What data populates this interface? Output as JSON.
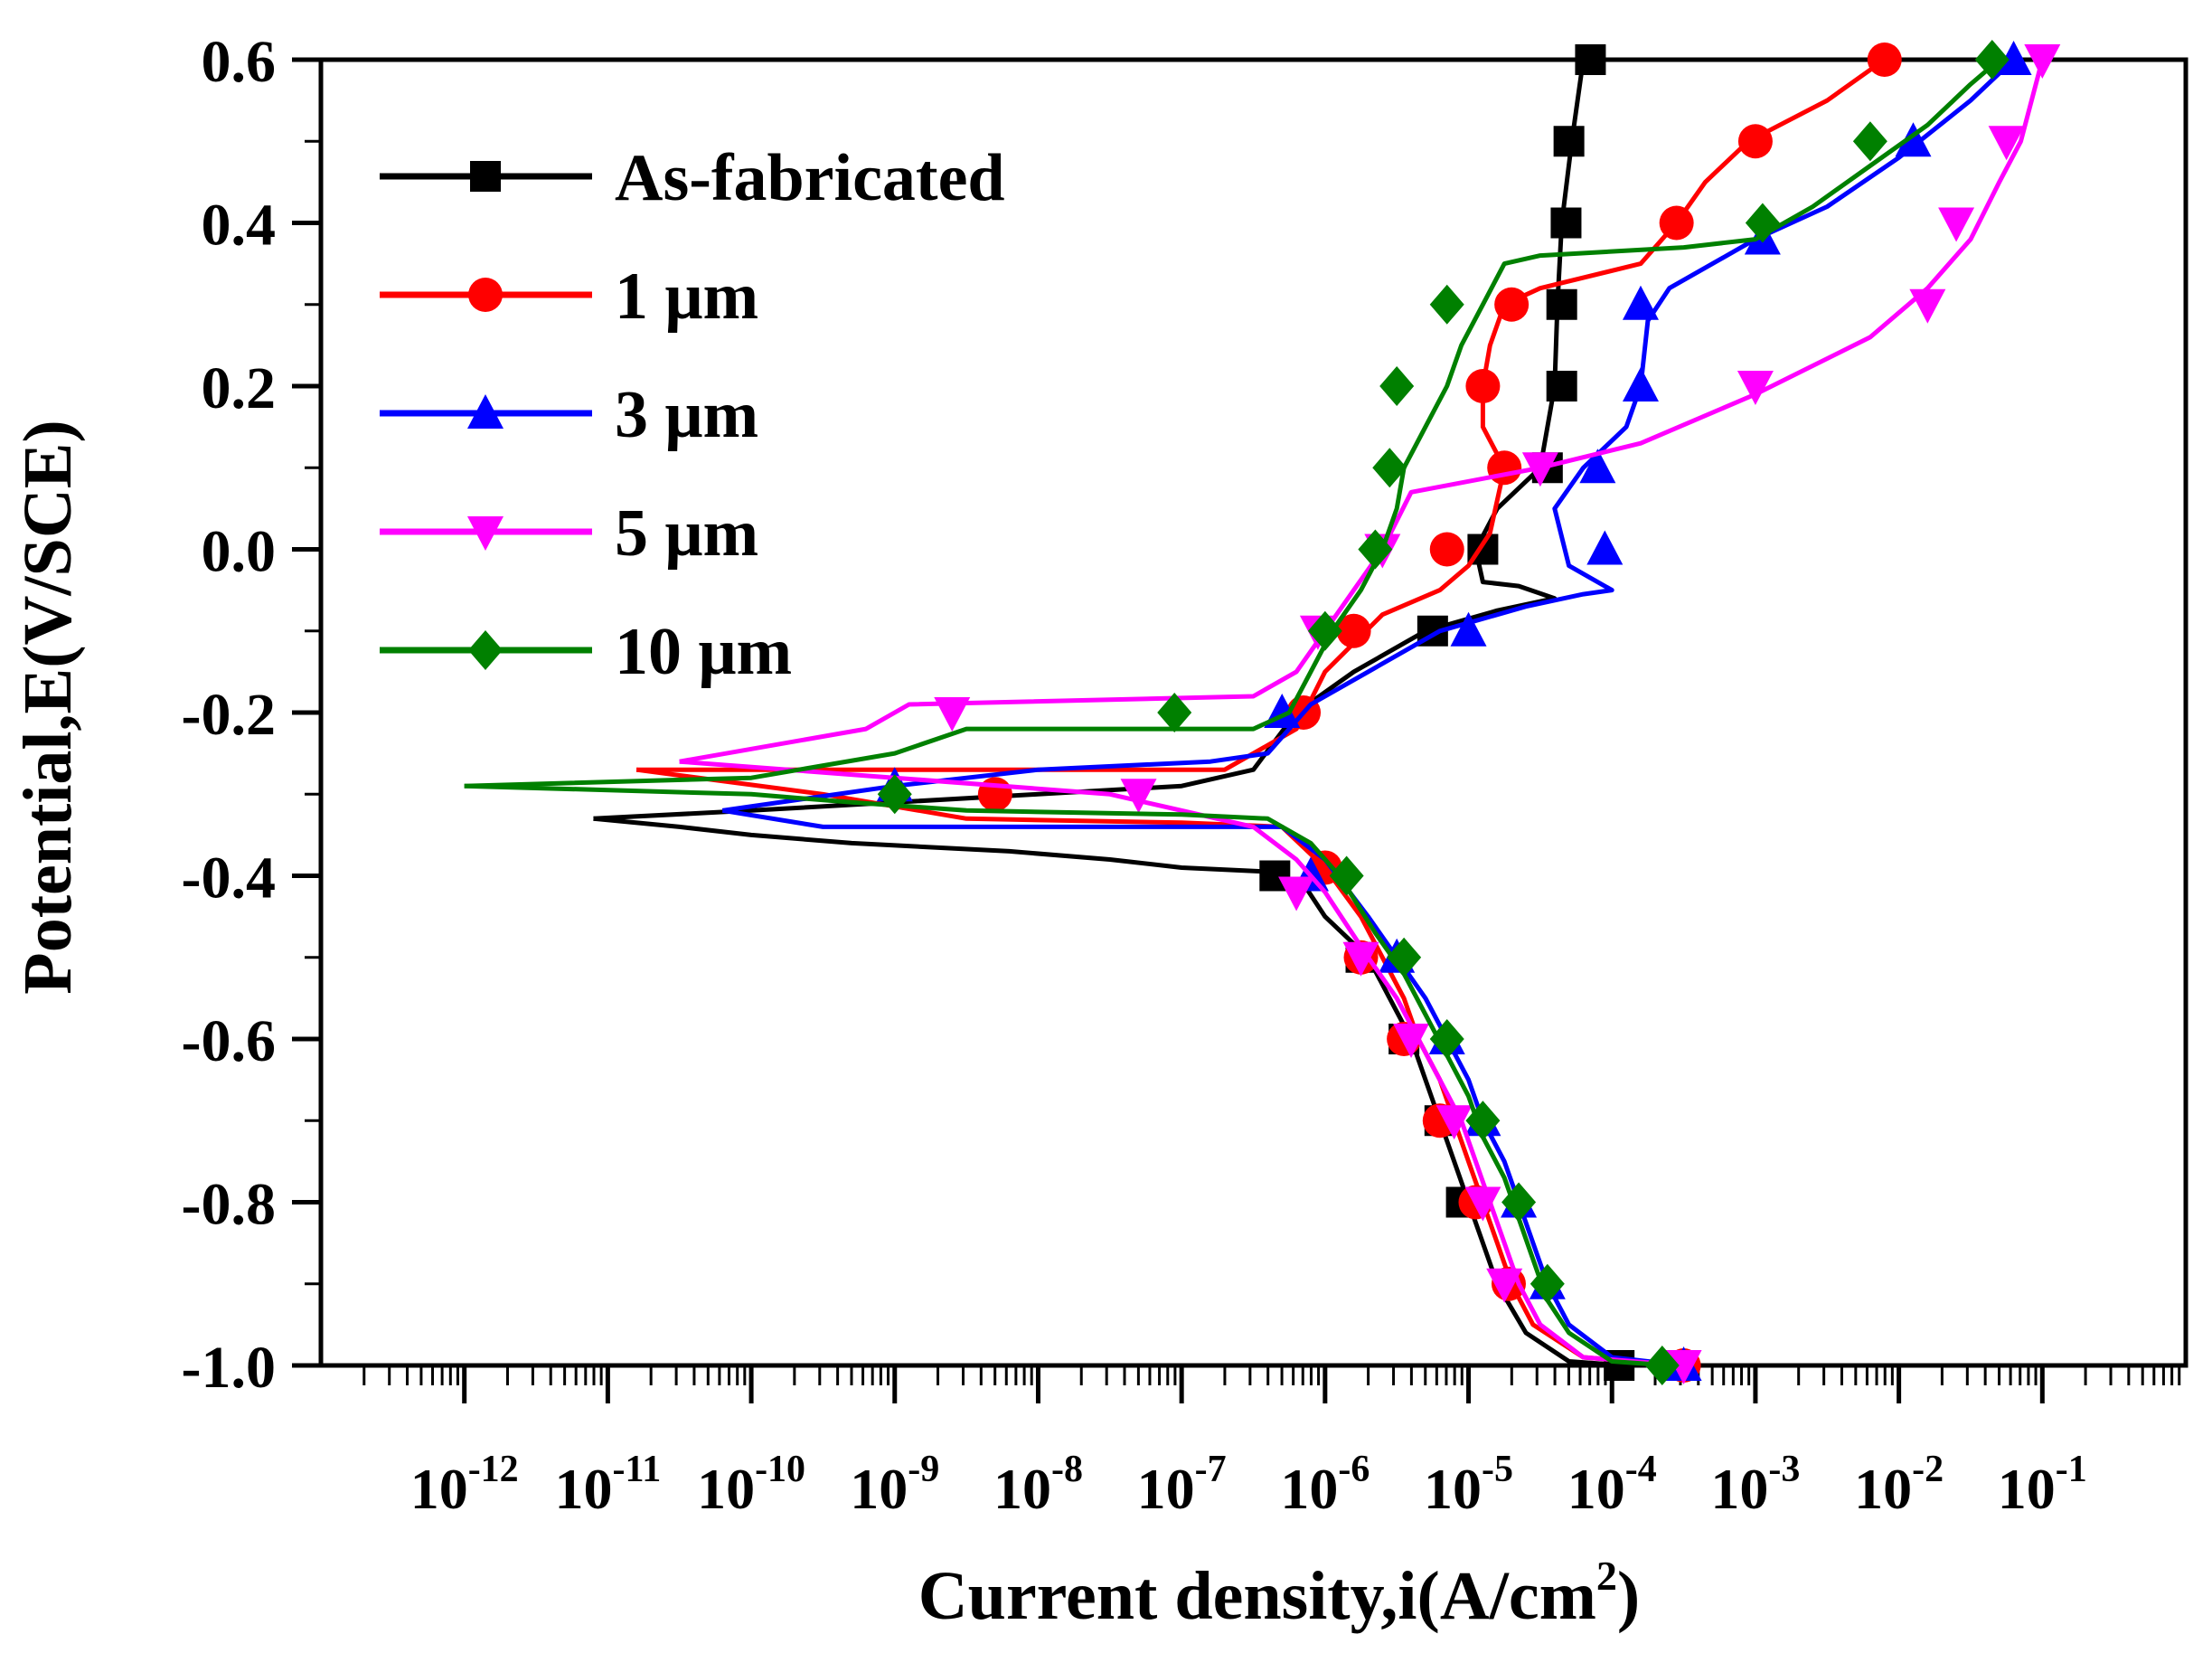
{
  "chart_data": {
    "type": "line",
    "title": "",
    "xlabel": "Current density,i(A/cm",
    "xlabel_sup": "2",
    "xlabel_close": ")",
    "ylabel": "Potential,E(V/SCE)",
    "x_scale": "log",
    "xlim_exp": [
      -13,
      0
    ],
    "ylim": [
      -1.0,
      0.6
    ],
    "x_tick_base": "10",
    "x_tick_exponents": [
      "-12",
      "-11",
      "-10",
      "-9",
      "-8",
      "-7",
      "-6",
      "-5",
      "-4",
      "-3",
      "-2",
      "-1"
    ],
    "y_ticks": [
      "0.6",
      "0.4",
      "0.2",
      "0.0",
      "-0.2",
      "-0.4",
      "-0.6",
      "-0.8",
      "-1.0"
    ],
    "legend_position": "top-left",
    "series": [
      {
        "name": "As-fabricated",
        "color": "#000000",
        "marker": "square",
        "points": [
          [
            -11.1,
            -0.33
          ],
          [
            -10.5,
            -0.34
          ],
          [
            -10,
            -0.35
          ],
          [
            -9.3,
            -0.36
          ],
          [
            -8.2,
            -0.37
          ],
          [
            -7.5,
            -0.38
          ],
          [
            -7,
            -0.39
          ],
          [
            -6.4,
            -0.395
          ],
          [
            -6.15,
            -0.41
          ],
          [
            -6.0,
            -0.45
          ],
          [
            -5.7,
            -0.5
          ],
          [
            -5.55,
            -0.55
          ],
          [
            -5.4,
            -0.6
          ],
          [
            -5.3,
            -0.65
          ],
          [
            -5.2,
            -0.7
          ],
          [
            -5.1,
            -0.75
          ],
          [
            -5.0,
            -0.8
          ],
          [
            -4.9,
            -0.85
          ],
          [
            -4.8,
            -0.9
          ],
          [
            -4.6,
            -0.96
          ],
          [
            -4.3,
            -0.995
          ],
          [
            -3.9,
            -1.0
          ]
        ],
        "anodic": [
          [
            -11.1,
            -0.33
          ],
          [
            -10,
            -0.32
          ],
          [
            -9,
            -0.31
          ],
          [
            -8,
            -0.3
          ],
          [
            -7,
            -0.29
          ],
          [
            -6.5,
            -0.27
          ],
          [
            -6.2,
            -0.2
          ],
          [
            -5.8,
            -0.15
          ],
          [
            -5.3,
            -0.1
          ],
          [
            -4.8,
            -0.075
          ],
          [
            -4.4,
            -0.06
          ],
          [
            -4.65,
            -0.045
          ],
          [
            -4.9,
            -0.04
          ],
          [
            -4.95,
            0
          ],
          [
            -4.8,
            0.05
          ],
          [
            -4.5,
            0.1
          ],
          [
            -4.4,
            0.2
          ],
          [
            -4.38,
            0.3
          ],
          [
            -4.35,
            0.4
          ],
          [
            -4.28,
            0.5
          ],
          [
            -4.2,
            0.6
          ]
        ],
        "marker_points": [
          [
            -6.35,
            -0.4
          ],
          [
            -5.75,
            -0.5
          ],
          [
            -5.45,
            -0.6
          ],
          [
            -5.2,
            -0.7
          ],
          [
            -5.05,
            -0.8
          ],
          [
            -3.95,
            -1.0
          ],
          [
            -5.25,
            -0.1
          ],
          [
            -4.9,
            0
          ],
          [
            -4.45,
            0.1
          ],
          [
            -4.35,
            0.2
          ],
          [
            -4.35,
            0.3
          ],
          [
            -4.32,
            0.4
          ],
          [
            -4.3,
            0.5
          ],
          [
            -4.15,
            0.6
          ]
        ]
      },
      {
        "name": "1 μm",
        "color": "#ff0000",
        "marker": "circle",
        "points": [
          [
            -10.8,
            -0.27
          ],
          [
            -9.5,
            -0.3
          ],
          [
            -8.5,
            -0.33
          ],
          [
            -7,
            -0.335
          ],
          [
            -6.3,
            -0.34
          ],
          [
            -6.0,
            -0.39
          ],
          [
            -5.75,
            -0.45
          ],
          [
            -5.6,
            -0.5
          ],
          [
            -5.45,
            -0.55
          ],
          [
            -5.35,
            -0.6
          ],
          [
            -5.2,
            -0.65
          ],
          [
            -5.1,
            -0.7
          ],
          [
            -5.0,
            -0.75
          ],
          [
            -4.9,
            -0.8
          ],
          [
            -4.8,
            -0.85
          ],
          [
            -4.7,
            -0.9
          ],
          [
            -4.55,
            -0.95
          ],
          [
            -4.2,
            -0.99
          ],
          [
            -3.5,
            -1.0
          ]
        ],
        "anodic": [
          [
            -10.8,
            -0.27
          ],
          [
            -8.5,
            -0.27
          ],
          [
            -6.7,
            -0.27
          ],
          [
            -6.2,
            -0.22
          ],
          [
            -6.0,
            -0.15
          ],
          [
            -5.6,
            -0.08
          ],
          [
            -5.2,
            -0.05
          ],
          [
            -5.0,
            -0.02
          ],
          [
            -4.85,
            0.02
          ],
          [
            -4.75,
            0.1
          ],
          [
            -4.9,
            0.15
          ],
          [
            -4.9,
            0.2
          ],
          [
            -4.85,
            0.25
          ],
          [
            -4.75,
            0.3
          ],
          [
            -4.5,
            0.32
          ],
          [
            -3.8,
            0.35
          ],
          [
            -3.55,
            0.4
          ],
          [
            -3.35,
            0.45
          ],
          [
            -3.05,
            0.5
          ],
          [
            -2.5,
            0.55
          ],
          [
            -2.1,
            0.6
          ]
        ],
        "marker_points": [
          [
            -8.3,
            -0.3
          ],
          [
            -6.0,
            -0.39
          ],
          [
            -5.75,
            -0.5
          ],
          [
            -5.45,
            -0.6
          ],
          [
            -5.2,
            -0.7
          ],
          [
            -4.95,
            -0.8
          ],
          [
            -4.72,
            -0.9
          ],
          [
            -3.5,
            -1.0
          ],
          [
            -6.15,
            -0.2
          ],
          [
            -5.8,
            -0.1
          ],
          [
            -5.15,
            0
          ],
          [
            -4.75,
            0.1
          ],
          [
            -4.9,
            0.2
          ],
          [
            -4.7,
            0.3
          ],
          [
            -3.55,
            0.4
          ],
          [
            -3.0,
            0.5
          ],
          [
            -2.1,
            0.6
          ]
        ]
      },
      {
        "name": "3 μm",
        "color": "#0000ff",
        "marker": "triangle-up",
        "points": [
          [
            -10.2,
            -0.32
          ],
          [
            -9.5,
            -0.34
          ],
          [
            -7,
            -0.34
          ],
          [
            -6.3,
            -0.34
          ],
          [
            -6.0,
            -0.38
          ],
          [
            -5.7,
            -0.45
          ],
          [
            -5.5,
            -0.5
          ],
          [
            -5.3,
            -0.55
          ],
          [
            -5.15,
            -0.6
          ],
          [
            -5.0,
            -0.65
          ],
          [
            -4.9,
            -0.7
          ],
          [
            -4.75,
            -0.75
          ],
          [
            -4.65,
            -0.8
          ],
          [
            -4.55,
            -0.85
          ],
          [
            -4.45,
            -0.9
          ],
          [
            -4.3,
            -0.95
          ],
          [
            -4.0,
            -0.99
          ],
          [
            -3.5,
            -1.0
          ]
        ],
        "anodic": [
          [
            -10.2,
            -0.32
          ],
          [
            -9,
            -0.29
          ],
          [
            -8,
            -0.27
          ],
          [
            -6.8,
            -0.26
          ],
          [
            -6.4,
            -0.25
          ],
          [
            -6.1,
            -0.19
          ],
          [
            -5.7,
            -0.15
          ],
          [
            -5.2,
            -0.1
          ],
          [
            -4.6,
            -0.07
          ],
          [
            -4.2,
            -0.055
          ],
          [
            -4.0,
            -0.05
          ],
          [
            -4.3,
            -0.02
          ],
          [
            -4.4,
            0.05
          ],
          [
            -4.2,
            0.1
          ],
          [
            -3.9,
            0.15
          ],
          [
            -3.8,
            0.2
          ],
          [
            -3.75,
            0.28
          ],
          [
            -3.6,
            0.32
          ],
          [
            -3.0,
            0.38
          ],
          [
            -2.5,
            0.42
          ],
          [
            -2.0,
            0.48
          ],
          [
            -1.5,
            0.55
          ],
          [
            -1.2,
            0.6
          ]
        ],
        "marker_points": [
          [
            -9.0,
            -0.29
          ],
          [
            -6.1,
            -0.4
          ],
          [
            -5.5,
            -0.5
          ],
          [
            -5.15,
            -0.6
          ],
          [
            -4.9,
            -0.7
          ],
          [
            -4.65,
            -0.8
          ],
          [
            -4.45,
            -0.9
          ],
          [
            -3.5,
            -1.0
          ],
          [
            -6.3,
            -0.2
          ],
          [
            -5.0,
            -0.1
          ],
          [
            -4.05,
            0
          ],
          [
            -4.1,
            0.1
          ],
          [
            -3.8,
            0.2
          ],
          [
            -3.8,
            0.3
          ],
          [
            -2.95,
            0.38
          ],
          [
            -1.9,
            0.5
          ],
          [
            -1.2,
            0.6
          ]
        ]
      },
      {
        "name": "5 μm",
        "color": "#ff00ff",
        "marker": "triangle-down",
        "points": [
          [
            -10.5,
            -0.26
          ],
          [
            -9,
            -0.28
          ],
          [
            -7.5,
            -0.3
          ],
          [
            -6.5,
            -0.34
          ],
          [
            -6.2,
            -0.38
          ],
          [
            -6.0,
            -0.42
          ],
          [
            -5.7,
            -0.5
          ],
          [
            -5.5,
            -0.55
          ],
          [
            -5.35,
            -0.6
          ],
          [
            -5.2,
            -0.65
          ],
          [
            -5.05,
            -0.7
          ],
          [
            -4.95,
            -0.75
          ],
          [
            -4.85,
            -0.8
          ],
          [
            -4.75,
            -0.85
          ],
          [
            -4.65,
            -0.9
          ],
          [
            -4.5,
            -0.95
          ],
          [
            -4.2,
            -0.99
          ],
          [
            -3.5,
            -1.0
          ]
        ],
        "anodic": [
          [
            -10.5,
            -0.26
          ],
          [
            -9.2,
            -0.22
          ],
          [
            -8.9,
            -0.19
          ],
          [
            -6.5,
            -0.18
          ],
          [
            -6.2,
            -0.15
          ],
          [
            -6.0,
            -0.1
          ],
          [
            -5.8,
            -0.05
          ],
          [
            -5.6,
            0.0
          ],
          [
            -5.4,
            0.07
          ],
          [
            -4.5,
            0.1
          ],
          [
            -3.8,
            0.13
          ],
          [
            -3.0,
            0.19
          ],
          [
            -2.2,
            0.26
          ],
          [
            -1.8,
            0.32
          ],
          [
            -1.5,
            0.38
          ],
          [
            -1.3,
            0.45
          ],
          [
            -1.15,
            0.5
          ],
          [
            -1.0,
            0.6
          ]
        ],
        "marker_points": [
          [
            -8.6,
            -0.2
          ],
          [
            -7.3,
            -0.3
          ],
          [
            -6.2,
            -0.42
          ],
          [
            -5.75,
            -0.5
          ],
          [
            -5.4,
            -0.6
          ],
          [
            -5.1,
            -0.7
          ],
          [
            -4.9,
            -0.8
          ],
          [
            -4.75,
            -0.9
          ],
          [
            -3.5,
            -1.0
          ],
          [
            -6.05,
            -0.1
          ],
          [
            -5.6,
            0.0
          ],
          [
            -4.5,
            0.1
          ],
          [
            -3.0,
            0.2
          ],
          [
            -1.8,
            0.3
          ],
          [
            -1.6,
            0.4
          ],
          [
            -1.25,
            0.5
          ],
          [
            -1.0,
            0.6
          ]
        ]
      },
      {
        "name": "10 μm",
        "color": "#008000",
        "marker": "diamond",
        "points": [
          [
            -12.0,
            -0.29
          ],
          [
            -10,
            -0.3
          ],
          [
            -9.3,
            -0.31
          ],
          [
            -8.5,
            -0.32
          ],
          [
            -7,
            -0.325
          ],
          [
            -6.4,
            -0.33
          ],
          [
            -6.1,
            -0.36
          ],
          [
            -5.9,
            -0.4
          ],
          [
            -5.65,
            -0.47
          ],
          [
            -5.45,
            -0.52
          ],
          [
            -5.3,
            -0.57
          ],
          [
            -5.15,
            -0.62
          ],
          [
            -5.0,
            -0.67
          ],
          [
            -4.9,
            -0.72
          ],
          [
            -4.75,
            -0.77
          ],
          [
            -4.65,
            -0.82
          ],
          [
            -4.55,
            -0.87
          ],
          [
            -4.45,
            -0.92
          ],
          [
            -4.3,
            -0.96
          ],
          [
            -4.0,
            -0.995
          ],
          [
            -3.6,
            -1.0
          ]
        ],
        "anodic": [
          [
            -12.0,
            -0.29
          ],
          [
            -10,
            -0.28
          ],
          [
            -9,
            -0.25
          ],
          [
            -8.5,
            -0.22
          ],
          [
            -6.5,
            -0.22
          ],
          [
            -6.25,
            -0.2
          ],
          [
            -6.1,
            -0.15
          ],
          [
            -5.95,
            -0.1
          ],
          [
            -5.75,
            -0.05
          ],
          [
            -5.6,
            0.0
          ],
          [
            -5.5,
            0.05
          ],
          [
            -5.45,
            0.1
          ],
          [
            -5.3,
            0.15
          ],
          [
            -5.15,
            0.2
          ],
          [
            -5.05,
            0.25
          ],
          [
            -4.9,
            0.3
          ],
          [
            -4.75,
            0.35
          ],
          [
            -4.5,
            0.36
          ],
          [
            -3.5,
            0.37
          ],
          [
            -3.0,
            0.38
          ],
          [
            -2.6,
            0.42
          ],
          [
            -2.2,
            0.47
          ],
          [
            -1.8,
            0.52
          ],
          [
            -1.5,
            0.57
          ],
          [
            -1.3,
            0.6
          ]
        ],
        "marker_points": [
          [
            -9.0,
            -0.3
          ],
          [
            -7.05,
            -0.2
          ],
          [
            -5.85,
            -0.4
          ],
          [
            -5.45,
            -0.5
          ],
          [
            -5.15,
            -0.6
          ],
          [
            -4.9,
            -0.7
          ],
          [
            -4.65,
            -0.8
          ],
          [
            -4.45,
            -0.9
          ],
          [
            -3.65,
            -1.0
          ],
          [
            -6.0,
            -0.1
          ],
          [
            -5.65,
            0.0
          ],
          [
            -5.55,
            0.1
          ],
          [
            -5.5,
            0.2
          ],
          [
            -5.15,
            0.3
          ],
          [
            -2.95,
            0.4
          ],
          [
            -2.2,
            0.5
          ],
          [
            -1.35,
            0.6
          ]
        ]
      }
    ]
  }
}
